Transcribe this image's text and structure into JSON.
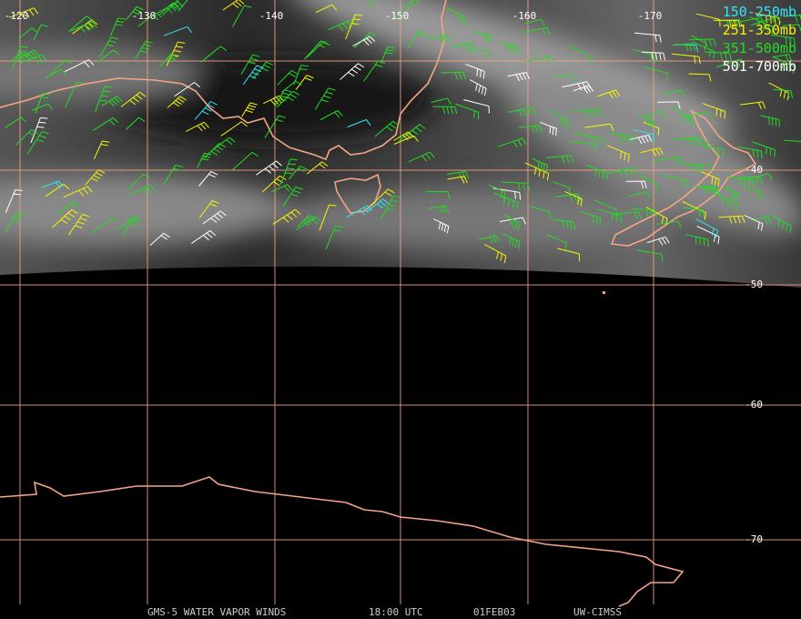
{
  "map": {
    "longitude_labels": [
      "-120",
      "-130",
      "-140",
      "-150",
      "-160",
      "-170"
    ],
    "latitude_labels": [
      "-40",
      "-50",
      "-60",
      "-70"
    ],
    "legend": [
      {
        "label": "150-250mb",
        "color": "#33e5f5"
      },
      {
        "label": "251-350mb",
        "color": "#f5f500"
      },
      {
        "label": "351-500mb",
        "color": "#22dd22"
      },
      {
        "label": "501-700mb",
        "color": "#ffffff"
      }
    ],
    "footer": [
      "GMS-5 WATER VAPOR WINDS",
      "18:00 UTC",
      "01FEB03",
      "UW-CIMSS"
    ]
  }
}
